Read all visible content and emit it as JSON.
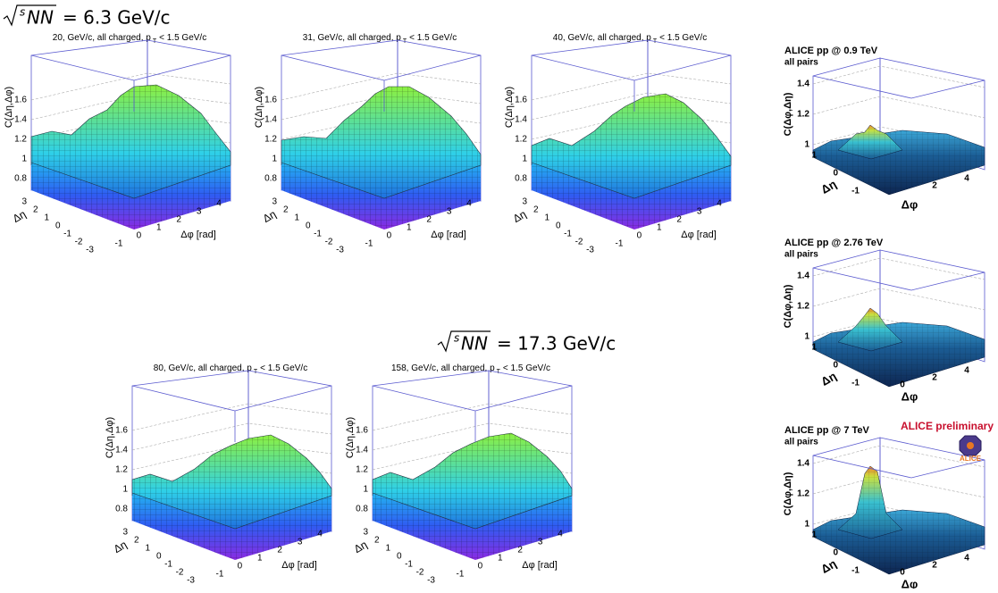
{
  "headings": [
    {
      "radicand_s": "s",
      "radicand_nn": "NN",
      "value": "= 6.3 GeV/c"
    },
    {
      "radicand_s": "s",
      "radicand_nn": "NN",
      "value": "= 17.3 GeV/c"
    }
  ],
  "na49_panels": [
    {
      "title": "20, GeV/c, all charged, p",
      "title_sub": "T",
      "title_rest": "< 1.5 GeV/c",
      "z_label": "C(Δη,Δφ)",
      "z_ticks": [
        "0.8",
        "1",
        "1.2",
        "1.4",
        "1.6"
      ],
      "y_label": "Δη",
      "y_ticks": [
        "3",
        "2",
        "1",
        "0",
        "-1",
        "-2",
        "-3"
      ],
      "x_label": "Δφ [rad]",
      "x_ticks": [
        "-1",
        "0",
        "1",
        "2",
        "3",
        "4"
      ]
    },
    {
      "title": "31, GeV/c, all charged, p",
      "title_sub": "T",
      "title_rest": "< 1.5 GeV/c",
      "z_label": "C(Δη,Δφ)",
      "z_ticks": [
        "0.8",
        "1",
        "1.2",
        "1.4",
        "1.6"
      ],
      "y_label": "Δη",
      "y_ticks": [
        "3",
        "2",
        "1",
        "0",
        "-1",
        "-2",
        "-3"
      ],
      "x_label": "Δφ [rad]",
      "x_ticks": [
        "-1",
        "0",
        "1",
        "2",
        "3",
        "4"
      ]
    },
    {
      "title": "40, GeV/c, all charged, p",
      "title_sub": "T",
      "title_rest": "< 1.5 GeV/c",
      "z_label": "C(Δη,Δφ)",
      "z_ticks": [
        "0.8",
        "1",
        "1.2",
        "1.4",
        "1.6"
      ],
      "y_label": "Δη",
      "y_ticks": [
        "3",
        "2",
        "1",
        "0",
        "-1",
        "-2",
        "-3"
      ],
      "x_label": "Δφ [rad]",
      "x_ticks": [
        "-1",
        "0",
        "1",
        "2",
        "3",
        "4"
      ]
    },
    {
      "title": "80, GeV/c, all charged, p",
      "title_sub": "T",
      "title_rest": "< 1.5 GeV/c",
      "z_label": "C(Δη,Δφ)",
      "z_ticks": [
        "0.8",
        "1",
        "1.2",
        "1.4",
        "1.6"
      ],
      "y_label": "Δη",
      "y_ticks": [
        "3",
        "2",
        "1",
        "0",
        "-1",
        "-2",
        "-3"
      ],
      "x_label": "Δφ [rad]",
      "x_ticks": [
        "-1",
        "0",
        "1",
        "2",
        "3",
        "4"
      ]
    },
    {
      "title": "158, GeV/c, all charged, p",
      "title_sub": "T",
      "title_rest": "< 1.5 GeV/c",
      "z_label": "C(Δη,Δφ)",
      "z_ticks": [
        "0.8",
        "1",
        "1.2",
        "1.4",
        "1.6"
      ],
      "y_label": "Δη",
      "y_ticks": [
        "3",
        "2",
        "1",
        "0",
        "-1",
        "-2",
        "-3"
      ],
      "x_label": "Δφ [rad]",
      "x_ticks": [
        "-1",
        "0",
        "1",
        "2",
        "3",
        "4"
      ]
    }
  ],
  "alice_panels": [
    {
      "title": "ALICE pp @ 0.9 TeV",
      "subtitle": "all pairs",
      "z_label": "C(Δφ,Δη)",
      "z_ticks": [
        "1",
        "1.2",
        "1.4"
      ],
      "y_label": "Δη",
      "y_ticks": [
        "1",
        "0",
        "-1"
      ],
      "x_label": "Δφ",
      "x_ticks": [
        "2",
        "4"
      ]
    },
    {
      "title": "ALICE pp @ 2.76 TeV",
      "subtitle": "all pairs",
      "z_label": "C(Δφ,Δη)",
      "z_ticks": [
        "1",
        "1.2",
        "1.4"
      ],
      "y_label": "Δη",
      "y_ticks": [
        "1",
        "0",
        "-1"
      ],
      "x_label": "Δφ",
      "x_ticks": [
        "0",
        "2",
        "4"
      ]
    },
    {
      "title": "ALICE pp @ 7 TeV",
      "subtitle": "all pairs",
      "z_label": "C(Δφ,Δη)",
      "z_ticks": [
        "1",
        "1.2",
        "1.4"
      ],
      "y_label": "Δη",
      "y_ticks": [
        "1",
        "0",
        "-1"
      ],
      "x_label": "Δφ",
      "x_ticks": [
        "0",
        "2",
        "4"
      ]
    }
  ],
  "alice_preliminary": "ALICE preliminary",
  "alice_logo": "ALICE"
}
